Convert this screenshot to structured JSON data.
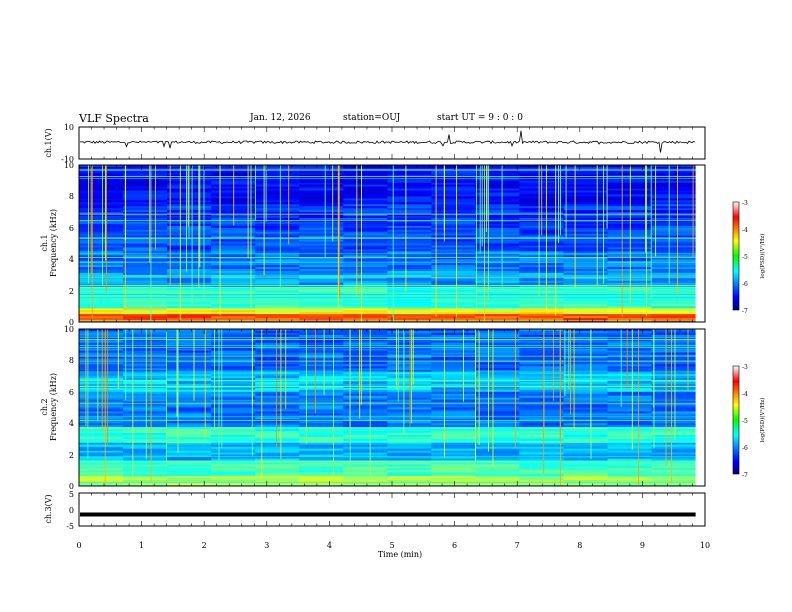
{
  "header": {
    "title": "VLF Spectra",
    "date": "Jan. 12, 2026",
    "station": "station=OUJ",
    "start": "start UT =  9 : 0 : 0"
  },
  "chart_data": [
    {
      "type": "line",
      "panel": "ch1-waveform",
      "ylabel": "ch.1(V)",
      "ylim": [
        -10,
        10
      ],
      "yticks": [
        "10",
        "-10"
      ],
      "xlim": [
        0,
        10
      ],
      "trace_level": 0.5
    },
    {
      "type": "heatmap",
      "panel": "ch1-spectrogram",
      "ylabel": "ch.1\nFrequency (kHz)",
      "ylabel_line1": "ch.1",
      "ylabel_line2": "Frequency (kHz)",
      "ylim": [
        0,
        10
      ],
      "yticks": [
        "0",
        "2",
        "4",
        "6",
        "8",
        "10"
      ],
      "xlim": [
        0,
        10
      ],
      "data_end_min": 9.85,
      "colorbar": {
        "label": "log(PSD)(V²/Hz)",
        "min": -7,
        "max": -3,
        "ticks": [
          "-3",
          "-4",
          "-5",
          "-6",
          "-7"
        ]
      }
    },
    {
      "type": "heatmap",
      "panel": "ch2-spectrogram",
      "ylabel_line1": "ch.2",
      "ylabel_line2": "Frequency (kHz)",
      "ylim": [
        0,
        10
      ],
      "yticks": [
        "0",
        "2",
        "4",
        "6",
        "8",
        "10"
      ],
      "xlim": [
        0,
        10
      ],
      "data_end_min": 9.85,
      "colorbar": {
        "label": "log(PSD)(V²/Hz)",
        "min": -7,
        "max": -3,
        "ticks": [
          "-3",
          "-4",
          "-5",
          "-6",
          "-7"
        ]
      }
    },
    {
      "type": "line",
      "panel": "ch3-waveform",
      "ylabel": "ch.3(V)",
      "ylim": [
        -5,
        5
      ],
      "yticks": [
        "5",
        "0",
        "-5"
      ],
      "xlim": [
        0,
        10
      ],
      "trace_level": -1.5,
      "xlabel": "Time (min)",
      "xticks": [
        "0",
        "1",
        "2",
        "3",
        "4",
        "5",
        "6",
        "7",
        "8",
        "9",
        "10"
      ]
    }
  ]
}
